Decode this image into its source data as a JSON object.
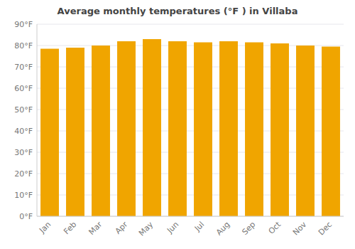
{
  "chart_data": {
    "type": "bar",
    "title": "Average monthly temperatures (°F ) in Villaba",
    "categories": [
      "Jan",
      "Feb",
      "Mar",
      "Apr",
      "May",
      "Jun",
      "Jul",
      "Aug",
      "Sep",
      "Oct",
      "Nov",
      "Dec"
    ],
    "values": [
      78.5,
      79.0,
      80.0,
      82.0,
      83.0,
      82.0,
      81.5,
      82.0,
      81.5,
      81.0,
      80.0,
      79.5
    ],
    "color": "#F0A500",
    "ylim": [
      0,
      90
    ],
    "yticks": [
      {
        "value": 0,
        "label": "0°F"
      },
      {
        "value": 10,
        "label": "10°F"
      },
      {
        "value": 20,
        "label": "20°F"
      },
      {
        "value": 30,
        "label": "30°F"
      },
      {
        "value": 40,
        "label": "40°F"
      },
      {
        "value": 50,
        "label": "50°F"
      },
      {
        "value": 60,
        "label": "60°F"
      },
      {
        "value": 70,
        "label": "70°F"
      },
      {
        "value": 80,
        "label": "80°F"
      },
      {
        "value": 90,
        "label": "90°F"
      }
    ],
    "grid": true
  }
}
